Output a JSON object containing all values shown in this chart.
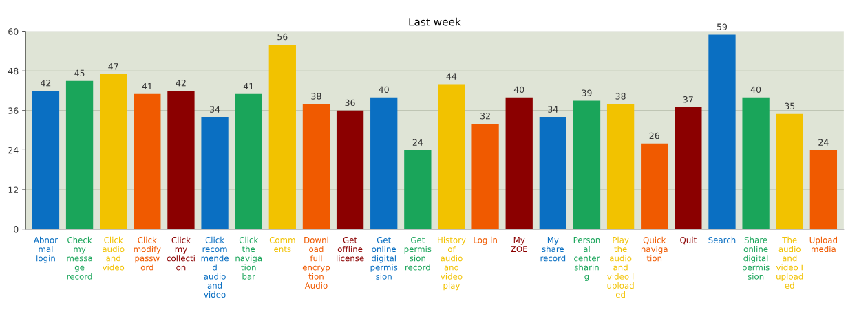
{
  "chart_data": {
    "type": "bar",
    "title": "Last week",
    "categories": [
      "Abnor\nmal\nlogin",
      "Check\nmy\nmessa\nge\nrecord",
      "Click\naudio\nand\nvideo",
      "Click\nmodify\npassw\nord",
      "Click\nmy\ncollecti\non",
      "Click\nrecom\nmende\nd\naudio\nand\nvideo",
      "Click\nthe\nnaviga\ntion\nbar",
      "Comm\nents",
      "Downl\noad\nfull\nencryp\ntion\nAudio",
      "Get\noffline\nlicense",
      "Get\nonline\ndigital\npermis\nsion",
      "Get\npermis\nsion\nrecord",
      "History\nof\naudio\nand\nvideo\nplay",
      "Log in",
      "My\nZOE",
      "My\nshare\nrecord",
      "Person\nal\ncenter\nsharin\ng",
      "Play\nthe\naudio\nand\nvideo I\nupload\ned",
      "Quick\nnaviga\ntion",
      "Quit",
      "Search",
      "Share\nonline\ndigital\npermis\nsion",
      "The\naudio\nand\nvideo I\nupload\ned",
      "Upload\nmedia"
    ],
    "values": [
      42,
      45,
      47,
      41,
      42,
      34,
      41,
      56,
      38,
      36,
      40,
      24,
      44,
      32,
      40,
      34,
      39,
      38,
      26,
      37,
      59,
      40,
      35,
      24
    ],
    "colors": [
      "#0a6fc2",
      "#1aa55a",
      "#f2c200",
      "#f05a00",
      "#8b0000",
      "#0a6fc2",
      "#1aa55a",
      "#f2c200",
      "#f05a00",
      "#8b0000",
      "#0a6fc2",
      "#1aa55a",
      "#f2c200",
      "#f05a00",
      "#8b0000",
      "#0a6fc2",
      "#1aa55a",
      "#f2c200",
      "#f05a00",
      "#8b0000",
      "#0a6fc2",
      "#1aa55a",
      "#f2c200",
      "#f05a00"
    ],
    "ylim": [
      0,
      60
    ],
    "yticks": [
      0,
      12,
      24,
      36,
      48,
      60
    ],
    "grid": "y",
    "data_labels": true
  }
}
